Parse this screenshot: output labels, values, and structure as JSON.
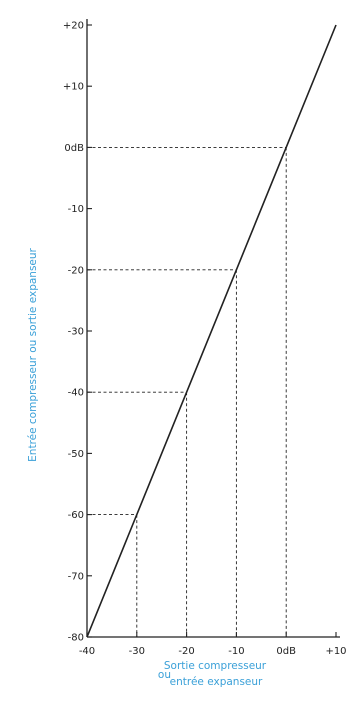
{
  "chart_data": {
    "type": "line",
    "xlabel_line1": "Sortie compresseur",
    "xlabel_prefix": "ou",
    "xlabel_line2": "entrée expanseur",
    "ylabel": "Entrée compresseur ou sortie expanseur",
    "xlim": [
      -40,
      10
    ],
    "ylim": [
      -80,
      20
    ],
    "x_ticks": [
      {
        "value": -40,
        "label": "-40"
      },
      {
        "value": -30,
        "label": "-30"
      },
      {
        "value": -20,
        "label": "-20"
      },
      {
        "value": -10,
        "label": "-10"
      },
      {
        "value": 0,
        "label": "0dB"
      },
      {
        "value": 10,
        "label": "+10"
      }
    ],
    "y_ticks": [
      {
        "value": 20,
        "label": "+20"
      },
      {
        "value": 10,
        "label": "+10"
      },
      {
        "value": 0,
        "label": "0dB"
      },
      {
        "value": -10,
        "label": "-10"
      },
      {
        "value": -20,
        "label": "-20"
      },
      {
        "value": -30,
        "label": "-30"
      },
      {
        "value": -40,
        "label": "-40"
      },
      {
        "value": -50,
        "label": "-50"
      },
      {
        "value": -60,
        "label": "-60"
      },
      {
        "value": -70,
        "label": "-70"
      },
      {
        "value": -80,
        "label": "-80"
      }
    ],
    "series": [
      {
        "x": [
          -40,
          10
        ],
        "y": [
          -80,
          20
        ]
      }
    ],
    "guides": [
      {
        "x": -30,
        "y": -60
      },
      {
        "x": -20,
        "y": -40
      },
      {
        "x": -10,
        "y": -20
      },
      {
        "x": 0,
        "y": 0
      }
    ],
    "grid": false,
    "colors": {
      "axis_label": "#3aa0d8",
      "ink": "#222222"
    }
  }
}
